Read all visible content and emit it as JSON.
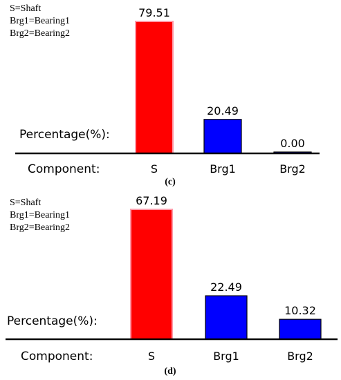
{
  "chart_data": [
    {
      "type": "bar",
      "panel_label": "(c)",
      "categories": [
        "S",
        "Brg1",
        "Brg2"
      ],
      "values": [
        79.51,
        20.49,
        0.0
      ],
      "value_labels": [
        "79.51",
        "20.49",
        "0.00"
      ],
      "bar_colors": [
        "#ff0000",
        "#0000ff",
        "#0000ff"
      ],
      "legend": [
        "S=Shaft",
        "Brg1=Bearing1",
        "Brg2=Bearing2"
      ],
      "ylabel": "Percentage(%):",
      "xlabel": "Component:",
      "ylim": [
        0,
        79.51
      ]
    },
    {
      "type": "bar",
      "panel_label": "(d)",
      "categories": [
        "S",
        "Brg1",
        "Brg2"
      ],
      "values": [
        67.19,
        22.49,
        10.32
      ],
      "value_labels": [
        "67.19",
        "22.49",
        "10.32"
      ],
      "bar_colors": [
        "#ff0000",
        "#0000ff",
        "#0000ff"
      ],
      "legend": [
        "S=Shaft",
        "Brg1=Bearing1",
        "Brg2=Bearing2"
      ],
      "ylabel": "Percentage(%):",
      "xlabel": "Component:",
      "ylim": [
        0,
        67.19
      ]
    }
  ]
}
